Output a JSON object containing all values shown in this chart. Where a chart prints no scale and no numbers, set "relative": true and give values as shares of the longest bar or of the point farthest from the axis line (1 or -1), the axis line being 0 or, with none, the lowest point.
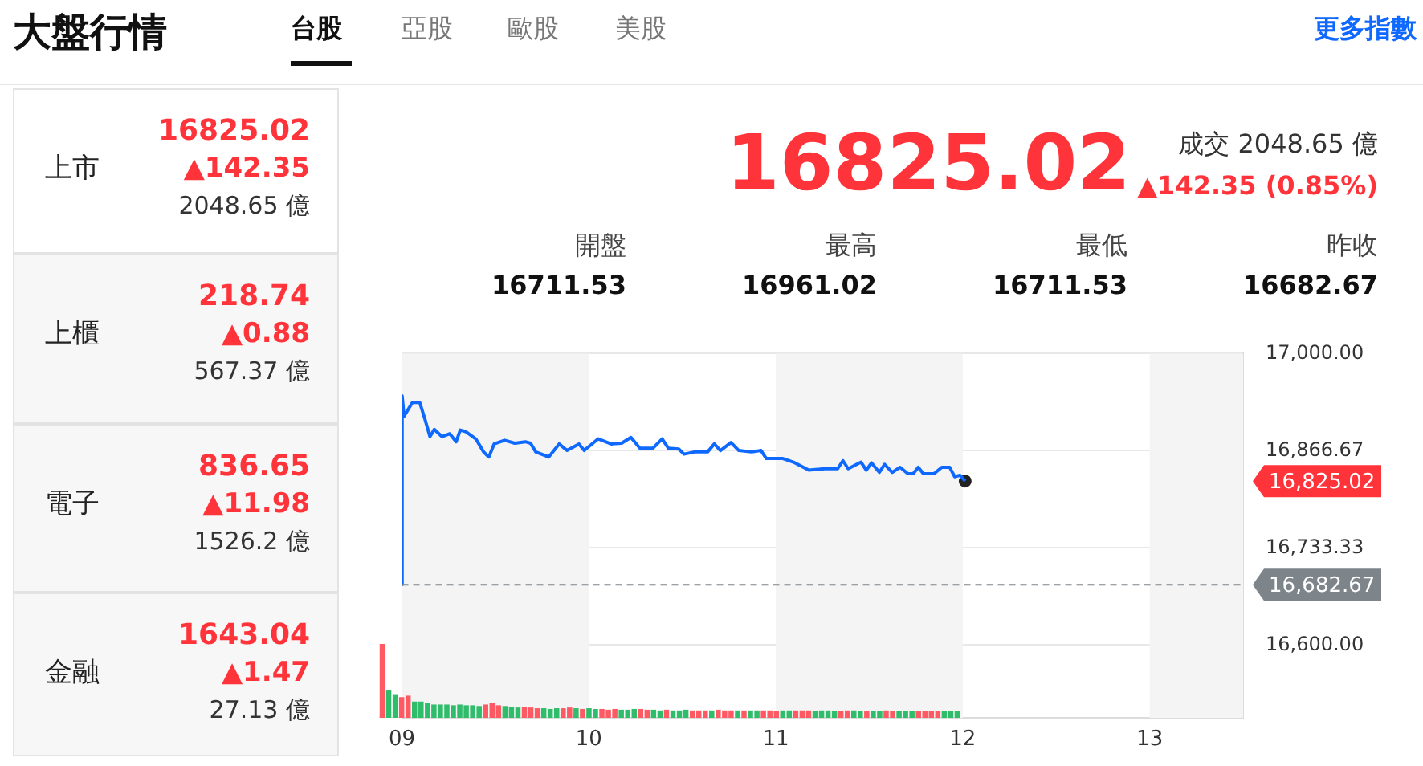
{
  "chart_data": [
    {
      "type": "other",
      "title": "大盤行情",
      "annotations": [
        "台股",
        "亞股",
        "歐股",
        "美股",
        "更多指數",
        "上市",
        "16825.02",
        "▲142.35",
        "2048.65 億",
        "上櫃",
        "218.74",
        "▲0.88",
        "567.37 億",
        "電子",
        "836.65",
        "▲11.98",
        "1526.2 億",
        "金融",
        "1643.04",
        "▲1.47",
        "27.13 億",
        "16825.02",
        "成交 2048.65 億",
        "▲142.35 (0.85%)",
        "開盤",
        "16711.53",
        "最高",
        "16961.02",
        "最低",
        "16711.53",
        "昨收",
        "16682.67"
      ]
    },
    {
      "type": "line",
      "legend": false,
      "grid": "y",
      "xlim": [
        9,
        13.5
      ],
      "xticks": [
        {
          "value": 9,
          "label": "09"
        },
        10,
        11,
        12,
        13
      ],
      "ylim": [
        16500,
        17000
      ],
      "yticks": [
        {
          "value": 16600,
          "label": "16,600.00"
        },
        {
          "value": 16733.33,
          "label": "16,733.33"
        },
        {
          "value": 16866.67,
          "label": "16,866.67"
        },
        {
          "value": 17000,
          "label": "17,000.00"
        }
      ],
      "series": [
        {
          "color": "#0f69ff",
          "x": [
            9,
            9.001,
            9.011,
            9.056,
            9.095,
            9.123,
            9.15,
            9.173,
            9.214,
            9.256,
            9.29,
            9.312,
            9.34,
            9.395,
            9.437,
            9.465,
            9.493,
            9.549,
            9.604,
            9.66,
            9.688,
            9.716,
            9.785,
            9.841,
            9.883,
            9.947,
            9.975,
            10.05,
            10.119,
            10.175,
            10.225,
            10.273,
            10.342,
            10.392,
            10.426,
            10.481,
            10.509,
            10.565,
            10.635,
            10.671,
            10.704,
            10.76,
            10.802,
            10.871,
            10.921,
            10.949,
            11.038,
            11.094,
            11.177,
            11.261,
            11.331,
            11.359,
            11.387,
            11.456,
            11.484,
            11.512,
            11.554,
            11.582,
            11.623,
            11.665,
            11.707,
            11.735,
            11.762,
            11.79,
            11.846,
            11.888,
            11.93,
            11.957,
            11.985,
            12.013
          ],
          "values": [
            16683,
            16942,
            16914,
            16933,
            16933,
            16910,
            16886,
            16896,
            16886,
            16890,
            16879,
            16895,
            16893,
            16883,
            16865,
            16858,
            16876,
            16881,
            16877,
            16879,
            16877,
            16865,
            16858,
            16876,
            16867,
            16876,
            16867,
            16883,
            16876,
            16877,
            16885,
            16870,
            16870,
            16883,
            16870,
            16869,
            16862,
            16865,
            16865,
            16876,
            16867,
            16878,
            16867,
            16865,
            16867,
            16856,
            16856,
            16851,
            16840,
            16842,
            16842,
            16853,
            16842,
            16851,
            16840,
            16850,
            16837,
            16848,
            16837,
            16844,
            16835,
            16835,
            16844,
            16835,
            16835,
            16844,
            16844,
            16831,
            16833,
            16825
          ]
        },
        {
          "type": "scatter",
          "marker": "circle",
          "color": "#222222",
          "x": [
            12.013
          ],
          "values": [
            16825
          ]
        }
      ],
      "bands": [
        {
          "axis": "x",
          "from": 9,
          "to": 10,
          "color": "#f4f4f4"
        },
        {
          "axis": "x",
          "from": 11,
          "to": 12,
          "color": "#f4f4f4"
        },
        {
          "axis": "x",
          "from": 13,
          "to": 13.5,
          "color": "#f4f4f4"
        }
      ],
      "ref_lines": [
        {
          "axis": "y",
          "value": 16682.67,
          "label": "16,682.67",
          "color": "#7d848a",
          "line_style": "dashed"
        }
      ],
      "annotations": [
        "16,825.02"
      ]
    },
    {
      "type": "bar",
      "relative": true,
      "legend": false,
      "grid": false,
      "tick_labels": false,
      "categories": [
        null,
        null,
        null,
        null,
        null,
        null,
        null,
        null,
        null,
        null,
        null,
        null,
        null,
        null,
        null,
        null,
        null,
        null,
        null,
        null,
        null,
        null,
        null,
        null,
        null,
        null,
        null,
        null,
        null,
        null,
        null,
        null,
        null,
        null,
        null,
        null,
        null,
        null,
        null,
        null,
        null,
        null,
        null,
        null,
        null,
        null,
        null,
        null,
        null,
        null,
        null,
        null,
        null,
        null,
        null,
        null,
        null,
        null,
        null,
        null,
        null,
        null,
        null,
        null,
        null,
        null,
        null,
        null,
        null,
        null,
        null,
        null,
        null,
        null,
        null,
        null,
        null,
        null,
        null,
        null,
        null,
        null,
        null,
        null,
        null,
        null,
        null,
        null,
        null,
        null
      ],
      "values": [
        1,
        0.38,
        0.32,
        0.28,
        0.3,
        0.22,
        0.22,
        0.2,
        0.18,
        0.18,
        0.18,
        0.17,
        0.18,
        0.17,
        0.17,
        0.16,
        0.18,
        0.2,
        0.17,
        0.16,
        0.15,
        0.14,
        0.15,
        0.14,
        0.13,
        0.13,
        0.12,
        0.13,
        0.13,
        0.14,
        0.13,
        0.12,
        0.13,
        0.12,
        0.12,
        0.11,
        0.12,
        0.11,
        0.11,
        0.12,
        0.12,
        0.11,
        0.11,
        0.1,
        0.11,
        0.1,
        0.1,
        0.11,
        0.1,
        0.1,
        0.1,
        0.1,
        0.11,
        0.1,
        0.1,
        0.1,
        0.1,
        0.1,
        0.1,
        0.1,
        0.1,
        0.09,
        0.1,
        0.1,
        0.1,
        0.1,
        0.1,
        0.09,
        0.1,
        0.1,
        0.09,
        0.09,
        0.1,
        0.1,
        0.09,
        0.09,
        0.09,
        0.09,
        0.1,
        0.09,
        0.09,
        0.09,
        0.09,
        0.09,
        0.09,
        0.09,
        0.09,
        0.09,
        0.09,
        0.09
      ],
      "colors": [
        "#ff5a64",
        "#2fbd6b",
        "#2fbd6b",
        "#ff5a64",
        "#ff5a64",
        "#2fbd6b",
        "#2fbd6b",
        "#2fbd6b",
        "#2fbd6b",
        "#2fbd6b",
        "#2fbd6b",
        "#2fbd6b",
        "#2fbd6b",
        "#2fbd6b",
        "#2fbd6b",
        "#2fbd6b",
        "#ff5a64",
        "#ff5a64",
        "#ff5a64",
        "#2fbd6b",
        "#2fbd6b",
        "#2fbd6b",
        "#ff5a64",
        "#ff5a64",
        "#ff5a64",
        "#2fbd6b",
        "#2fbd6b",
        "#2fbd6b",
        "#ff5a64",
        "#ff5a64",
        "#2fbd6b",
        "#ff5a64",
        "#2fbd6b",
        "#2fbd6b",
        "#ff5a64",
        "#ff5a64",
        "#ff5a64",
        "#2fbd6b",
        "#2fbd6b",
        "#2fbd6b",
        "#ff5a64",
        "#ff5a64",
        "#2fbd6b",
        "#2fbd6b",
        "#ff5a64",
        "#2fbd6b",
        "#2fbd6b",
        "#2fbd6b",
        "#ff5a64",
        "#ff5a64",
        "#ff5a64",
        "#2fbd6b",
        "#ff5a64",
        "#ff5a64",
        "#ff5a64",
        "#2fbd6b",
        "#ff5a64",
        "#2fbd6b",
        "#2fbd6b",
        "#ff5a64",
        "#ff5a64",
        "#ff5a64",
        "#2fbd6b",
        "#2fbd6b",
        "#ff5a64",
        "#ff5a64",
        "#ff5a64",
        "#2fbd6b",
        "#2fbd6b",
        "#2fbd6b",
        "#2fbd6b",
        "#ff5a64",
        "#ff5a64",
        "#2fbd6b",
        "#2fbd6b",
        "#ff5a64",
        "#2fbd6b",
        "#2fbd6b",
        "#ff5a64",
        "#ff5a64",
        "#2fbd6b",
        "#2fbd6b",
        "#2fbd6b",
        "#ff5a64",
        "#ff5a64",
        "#ff5a64",
        "#ff5a64",
        "#2fbd6b",
        "#2fbd6b",
        "#2fbd6b"
      ]
    }
  ]
}
